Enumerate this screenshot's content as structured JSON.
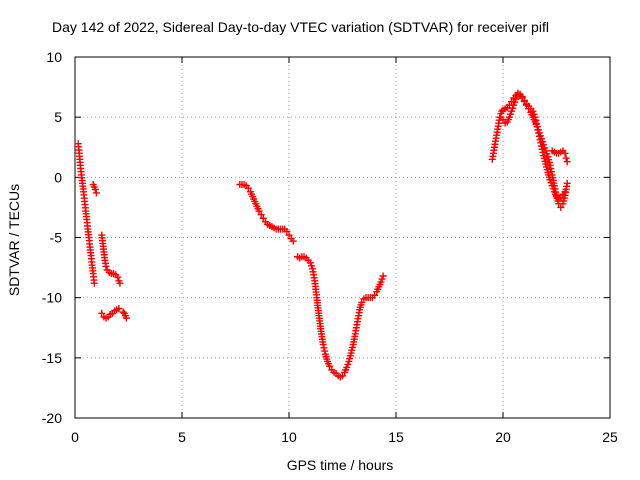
{
  "chart_data": {
    "type": "scatter",
    "title": "Day 142 of 2022, Sidereal Day-to-day VTEC variation (SDTVAR) for receiver pifl",
    "xlabel": "GPS time / hours",
    "ylabel": "SDTVAR / TECUs",
    "xlim": [
      0,
      25
    ],
    "ylim": [
      -20,
      10
    ],
    "xticks": [
      0,
      5,
      10,
      15,
      20,
      25
    ],
    "yticks": [
      -20,
      -15,
      -10,
      -5,
      0,
      5,
      10
    ],
    "grid": true,
    "marker": "+",
    "color": "#ff0000",
    "series": [
      {
        "name": "SDTVAR",
        "segments": [
          [
            [
              0.15,
              2.8
            ],
            [
              0.2,
              2.0
            ],
            [
              0.25,
              1.0
            ],
            [
              0.3,
              0.2
            ],
            [
              0.35,
              -0.5
            ],
            [
              0.4,
              -1.2
            ],
            [
              0.45,
              -2.0
            ],
            [
              0.5,
              -2.8
            ],
            [
              0.55,
              -3.5
            ],
            [
              0.6,
              -4.3
            ],
            [
              0.65,
              -5.0
            ],
            [
              0.7,
              -5.8
            ],
            [
              0.75,
              -6.5
            ],
            [
              0.8,
              -7.3
            ],
            [
              0.85,
              -8.0
            ],
            [
              0.9,
              -8.8
            ]
          ],
          [
            [
              0.85,
              -0.6
            ],
            [
              0.9,
              -0.8
            ],
            [
              0.95,
              -1.0
            ],
            [
              1.0,
              -1.3
            ]
          ],
          [
            [
              1.25,
              -4.8
            ],
            [
              1.3,
              -5.5
            ],
            [
              1.35,
              -6.2
            ],
            [
              1.4,
              -6.9
            ],
            [
              1.45,
              -7.4
            ],
            [
              1.5,
              -7.7
            ],
            [
              1.6,
              -7.9
            ],
            [
              1.7,
              -8.0
            ],
            [
              1.8,
              -8.0
            ],
            [
              1.9,
              -8.1
            ],
            [
              2.0,
              -8.3
            ],
            [
              2.05,
              -8.6
            ],
            [
              2.1,
              -8.8
            ]
          ],
          [
            [
              1.25,
              -11.3
            ],
            [
              1.35,
              -11.6
            ],
            [
              1.45,
              -11.7
            ],
            [
              1.55,
              -11.6
            ],
            [
              1.65,
              -11.4
            ],
            [
              1.75,
              -11.3
            ],
            [
              1.85,
              -11.1
            ],
            [
              1.95,
              -11.0
            ],
            [
              2.05,
              -10.9
            ]
          ],
          [
            [
              2.25,
              -11.2
            ],
            [
              2.3,
              -11.3
            ],
            [
              2.35,
              -11.5
            ],
            [
              2.4,
              -11.7
            ]
          ],
          [
            [
              7.7,
              -0.6
            ],
            [
              7.8,
              -0.6
            ],
            [
              7.9,
              -0.6
            ],
            [
              8.0,
              -0.7
            ],
            [
              8.1,
              -0.9
            ],
            [
              8.2,
              -1.2
            ],
            [
              8.3,
              -1.6
            ],
            [
              8.4,
              -2.0
            ],
            [
              8.5,
              -2.4
            ],
            [
              8.6,
              -2.8
            ],
            [
              8.7,
              -3.1
            ],
            [
              8.8,
              -3.4
            ],
            [
              8.9,
              -3.7
            ],
            [
              9.0,
              -3.9
            ],
            [
              9.1,
              -4.0
            ],
            [
              9.2,
              -4.1
            ],
            [
              9.3,
              -4.2
            ],
            [
              9.4,
              -4.3
            ],
            [
              9.5,
              -4.3
            ],
            [
              9.6,
              -4.3
            ],
            [
              9.7,
              -4.3
            ],
            [
              9.8,
              -4.3
            ],
            [
              9.9,
              -4.5
            ],
            [
              10.0,
              -4.8
            ],
            [
              10.1,
              -5.1
            ],
            [
              10.2,
              -5.3
            ]
          ],
          [
            [
              10.4,
              -6.6
            ],
            [
              10.5,
              -6.7
            ],
            [
              10.6,
              -6.6
            ],
            [
              10.7,
              -6.6
            ],
            [
              10.8,
              -6.7
            ],
            [
              10.9,
              -6.9
            ],
            [
              11.0,
              -7.1
            ],
            [
              11.1,
              -7.6
            ],
            [
              11.2,
              -8.6
            ],
            [
              11.3,
              -10.0
            ],
            [
              11.4,
              -11.5
            ],
            [
              11.5,
              -12.8
            ],
            [
              11.6,
              -13.9
            ],
            [
              11.7,
              -14.7
            ],
            [
              11.8,
              -15.3
            ],
            [
              11.9,
              -15.7
            ],
            [
              12.0,
              -16.0
            ],
            [
              12.1,
              -16.2
            ],
            [
              12.2,
              -16.3
            ],
            [
              12.3,
              -16.5
            ],
            [
              12.4,
              -16.6
            ],
            [
              12.5,
              -16.5
            ],
            [
              12.6,
              -16.2
            ],
            [
              12.7,
              -15.8
            ],
            [
              12.8,
              -15.3
            ],
            [
              12.9,
              -14.6
            ],
            [
              13.0,
              -13.9
            ],
            [
              13.1,
              -13.0
            ],
            [
              13.2,
              -12.0
            ],
            [
              13.3,
              -11.0
            ],
            [
              13.4,
              -10.4
            ],
            [
              13.5,
              -10.1
            ],
            [
              13.6,
              -10.0
            ],
            [
              13.7,
              -10.0
            ],
            [
              13.8,
              -10.0
            ],
            [
              13.9,
              -10.0
            ],
            [
              14.0,
              -9.8
            ],
            [
              14.1,
              -9.5
            ],
            [
              14.2,
              -9.1
            ],
            [
              14.3,
              -8.7
            ],
            [
              14.4,
              -8.2
            ]
          ],
          [
            [
              19.5,
              1.5
            ],
            [
              19.55,
              2.0
            ],
            [
              19.6,
              2.5
            ],
            [
              19.65,
              3.0
            ],
            [
              19.7,
              3.5
            ],
            [
              19.75,
              4.0
            ],
            [
              19.8,
              4.5
            ],
            [
              19.85,
              5.0
            ],
            [
              19.9,
              5.3
            ],
            [
              19.95,
              5.5
            ],
            [
              20.0,
              5.6
            ],
            [
              20.1,
              5.7
            ],
            [
              20.2,
              5.8
            ],
            [
              20.3,
              6.0
            ],
            [
              20.4,
              6.3
            ],
            [
              20.5,
              6.6
            ],
            [
              20.6,
              6.8
            ],
            [
              20.7,
              6.9
            ],
            [
              20.8,
              6.8
            ],
            [
              20.9,
              6.6
            ],
            [
              21.0,
              6.3
            ],
            [
              21.1,
              6.0
            ],
            [
              21.2,
              5.7
            ],
            [
              21.3,
              5.4
            ],
            [
              21.4,
              5.0
            ],
            [
              21.5,
              4.6
            ],
            [
              21.6,
              4.2
            ],
            [
              21.7,
              3.7
            ],
            [
              21.8,
              3.2
            ],
            [
              21.9,
              2.7
            ],
            [
              22.0,
              2.2
            ],
            [
              22.1,
              1.7
            ],
            [
              22.2,
              1.0
            ],
            [
              22.3,
              0.2
            ],
            [
              22.4,
              -0.7
            ],
            [
              22.5,
              -1.5
            ],
            [
              22.6,
              -2.2
            ],
            [
              22.7,
              -2.5
            ],
            [
              22.8,
              -2.2
            ],
            [
              22.9,
              -1.5
            ],
            [
              23.0,
              -0.5
            ]
          ],
          [
            [
              19.9,
              5.0
            ],
            [
              20.0,
              4.8
            ],
            [
              20.1,
              4.5
            ],
            [
              20.2,
              4.6
            ],
            [
              20.3,
              5.0
            ],
            [
              20.4,
              5.5
            ],
            [
              20.5,
              6.0
            ],
            [
              20.6,
              6.5
            ],
            [
              20.7,
              7.0
            ],
            [
              20.8,
              6.9
            ],
            [
              20.9,
              6.7
            ],
            [
              21.0,
              6.4
            ],
            [
              21.1,
              6.1
            ],
            [
              21.2,
              5.9
            ],
            [
              21.3,
              5.7
            ],
            [
              21.4,
              5.5
            ],
            [
              21.5,
              5.0
            ],
            [
              21.6,
              4.2
            ],
            [
              21.7,
              3.4
            ],
            [
              21.8,
              2.6
            ],
            [
              21.9,
              1.8
            ],
            [
              22.0,
              1.1
            ],
            [
              22.1,
              0.4
            ],
            [
              22.2,
              -0.2
            ],
            [
              22.3,
              -0.7
            ],
            [
              22.4,
              -1.2
            ],
            [
              22.5,
              -1.6
            ],
            [
              22.6,
              -1.8
            ],
            [
              22.7,
              -1.7
            ],
            [
              22.8,
              -1.4
            ],
            [
              22.9,
              -1.2
            ]
          ],
          [
            [
              22.3,
              2.2
            ],
            [
              22.4,
              2.1
            ],
            [
              22.5,
              2.0
            ],
            [
              22.6,
              2.0
            ],
            [
              22.7,
              2.1
            ],
            [
              22.8,
              2.2
            ],
            [
              22.9,
              2.0
            ],
            [
              22.95,
              1.6
            ],
            [
              23.0,
              1.3
            ]
          ]
        ]
      }
    ]
  }
}
